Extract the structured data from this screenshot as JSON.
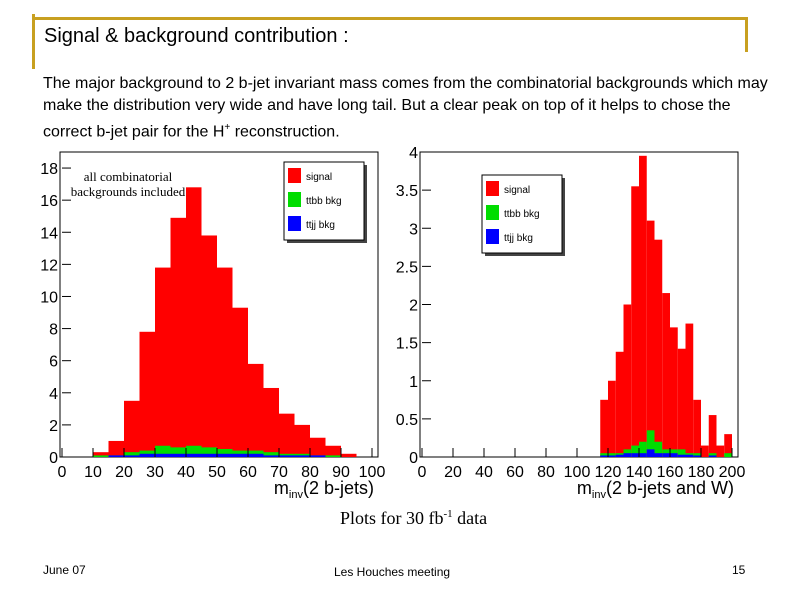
{
  "slide": {
    "title": "Signal & background contribution :",
    "paragraph_part1": "The major background to 2 b-jet invariant mass comes from the combinatorial backgrounds which may make the distribution very wide and have long tail.  But a clear peak on top of it helps to  chose the correct b-jet pair for the H",
    "paragraph_sup": "+",
    "paragraph_part2": " reconstruction.",
    "caption_main": "Plots for 30 fb",
    "caption_sup": "-1",
    "caption_end": " data",
    "footer_date": "June 07",
    "footer_event": "Les Houches meeting",
    "footer_page": "15"
  },
  "colors": {
    "accent": "#c8a020",
    "signal": "#ff0000",
    "ttbb": "#00dd00",
    "ttjj": "#0000ff"
  },
  "chart_data": [
    {
      "type": "bar",
      "title": "",
      "annotation": "all combinatorial backgrounds included",
      "xlabel": "m_inv(2 b-jets)",
      "ylabel": "",
      "xlim": [
        0,
        100
      ],
      "ylim": [
        0,
        19
      ],
      "xticks": [
        "0",
        "10",
        "20",
        "30",
        "40",
        "50",
        "60",
        "70",
        "80",
        "90",
        "100"
      ],
      "yticks": [
        "0",
        "2",
        "4",
        "6",
        "8",
        "10",
        "12",
        "14",
        "16",
        "18"
      ],
      "bin_edges": [
        10,
        15,
        20,
        25,
        30,
        35,
        40,
        45,
        50,
        55,
        60,
        65,
        70,
        75,
        80,
        85,
        90,
        95
      ],
      "series": [
        {
          "name": "signal",
          "values": [
            0.3,
            1.0,
            3.5,
            7.8,
            11.8,
            14.9,
            16.8,
            13.8,
            11.8,
            9.3,
            5.8,
            4.3,
            2.7,
            2.0,
            1.2,
            0.7,
            0.2
          ]
        },
        {
          "name": "ttbb bkg",
          "values": [
            0.1,
            0.1,
            0.3,
            0.4,
            0.7,
            0.6,
            0.7,
            0.6,
            0.5,
            0.4,
            0.4,
            0.3,
            0.2,
            0.2,
            0.1,
            0.1,
            0.0
          ]
        },
        {
          "name": "ttjj bkg",
          "values": [
            0.0,
            0.1,
            0.1,
            0.2,
            0.2,
            0.2,
            0.2,
            0.2,
            0.2,
            0.2,
            0.2,
            0.1,
            0.1,
            0.1,
            0.1,
            0.0,
            0.0
          ]
        }
      ],
      "legend": "top-right"
    },
    {
      "type": "bar",
      "title": "",
      "xlabel": "m_inv(2 b-jets and W)",
      "ylabel": "",
      "xlim": [
        0,
        200
      ],
      "ylim": [
        0,
        4
      ],
      "xticks": [
        "0",
        "20",
        "40",
        "60",
        "80",
        "100",
        "120",
        "140",
        "160",
        "180",
        "200"
      ],
      "yticks": [
        "0",
        "0.5",
        "1",
        "1.5",
        "2",
        "2.5",
        "3",
        "3.5",
        "4"
      ],
      "bin_edges": [
        110,
        115,
        120,
        125,
        130,
        135,
        140,
        145,
        150,
        155,
        160,
        165,
        170,
        175,
        180,
        185,
        190,
        195,
        200
      ],
      "series": [
        {
          "name": "signal",
          "values": [
            0.0,
            0.75,
            1.0,
            1.38,
            2.0,
            3.55,
            3.95,
            3.1,
            2.85,
            2.15,
            1.7,
            1.42,
            1.75,
            0.75,
            0.15,
            0.55,
            0.15,
            0.3
          ]
        },
        {
          "name": "ttbb bkg",
          "values": [
            0.0,
            0.05,
            0.05,
            0.05,
            0.1,
            0.15,
            0.2,
            0.35,
            0.2,
            0.1,
            0.1,
            0.1,
            0.05,
            0.05,
            0.0,
            0.05,
            0.0,
            0.05
          ]
        },
        {
          "name": "ttjj bkg",
          "values": [
            0.0,
            0.02,
            0.02,
            0.03,
            0.05,
            0.05,
            0.05,
            0.1,
            0.05,
            0.05,
            0.05,
            0.03,
            0.03,
            0.02,
            0.0,
            0.02,
            0.0,
            0.0
          ]
        }
      ],
      "legend": "top-right"
    }
  ]
}
